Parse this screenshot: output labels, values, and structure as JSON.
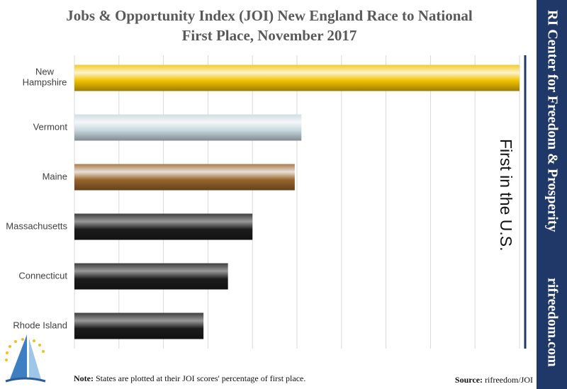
{
  "chart_data": {
    "type": "bar",
    "orientation": "horizontal",
    "title": "Jobs & Opportunity Index (JOI) New England Race to National First Place, November 2017",
    "categories": [
      "New Hampshire",
      "Vermont",
      "Maine",
      "Massachusetts",
      "Connecticut",
      "Rhode Island"
    ],
    "values": [
      100,
      51,
      49.5,
      40,
      34.5,
      29
    ],
    "colors": [
      "#f2c200",
      "#c7d8de",
      "#98652c",
      "#1c1c1c",
      "#1c1c1c",
      "#1c1c1c"
    ],
    "xlim": [
      0,
      100
    ],
    "xticks": [
      0,
      10,
      20,
      30,
      40,
      50,
      60,
      70,
      80,
      90,
      100
    ],
    "grid": true,
    "annotation": "First in the U.S.",
    "note_label": "Note:",
    "note": "States are plotted at their JOI scores' percentage of first place.",
    "source_label": "Source:",
    "source": "rifreedom/JOI"
  },
  "sidebar": {
    "org": "RI Center for Freedom & Prosperity",
    "url": "rifreedom.com"
  }
}
